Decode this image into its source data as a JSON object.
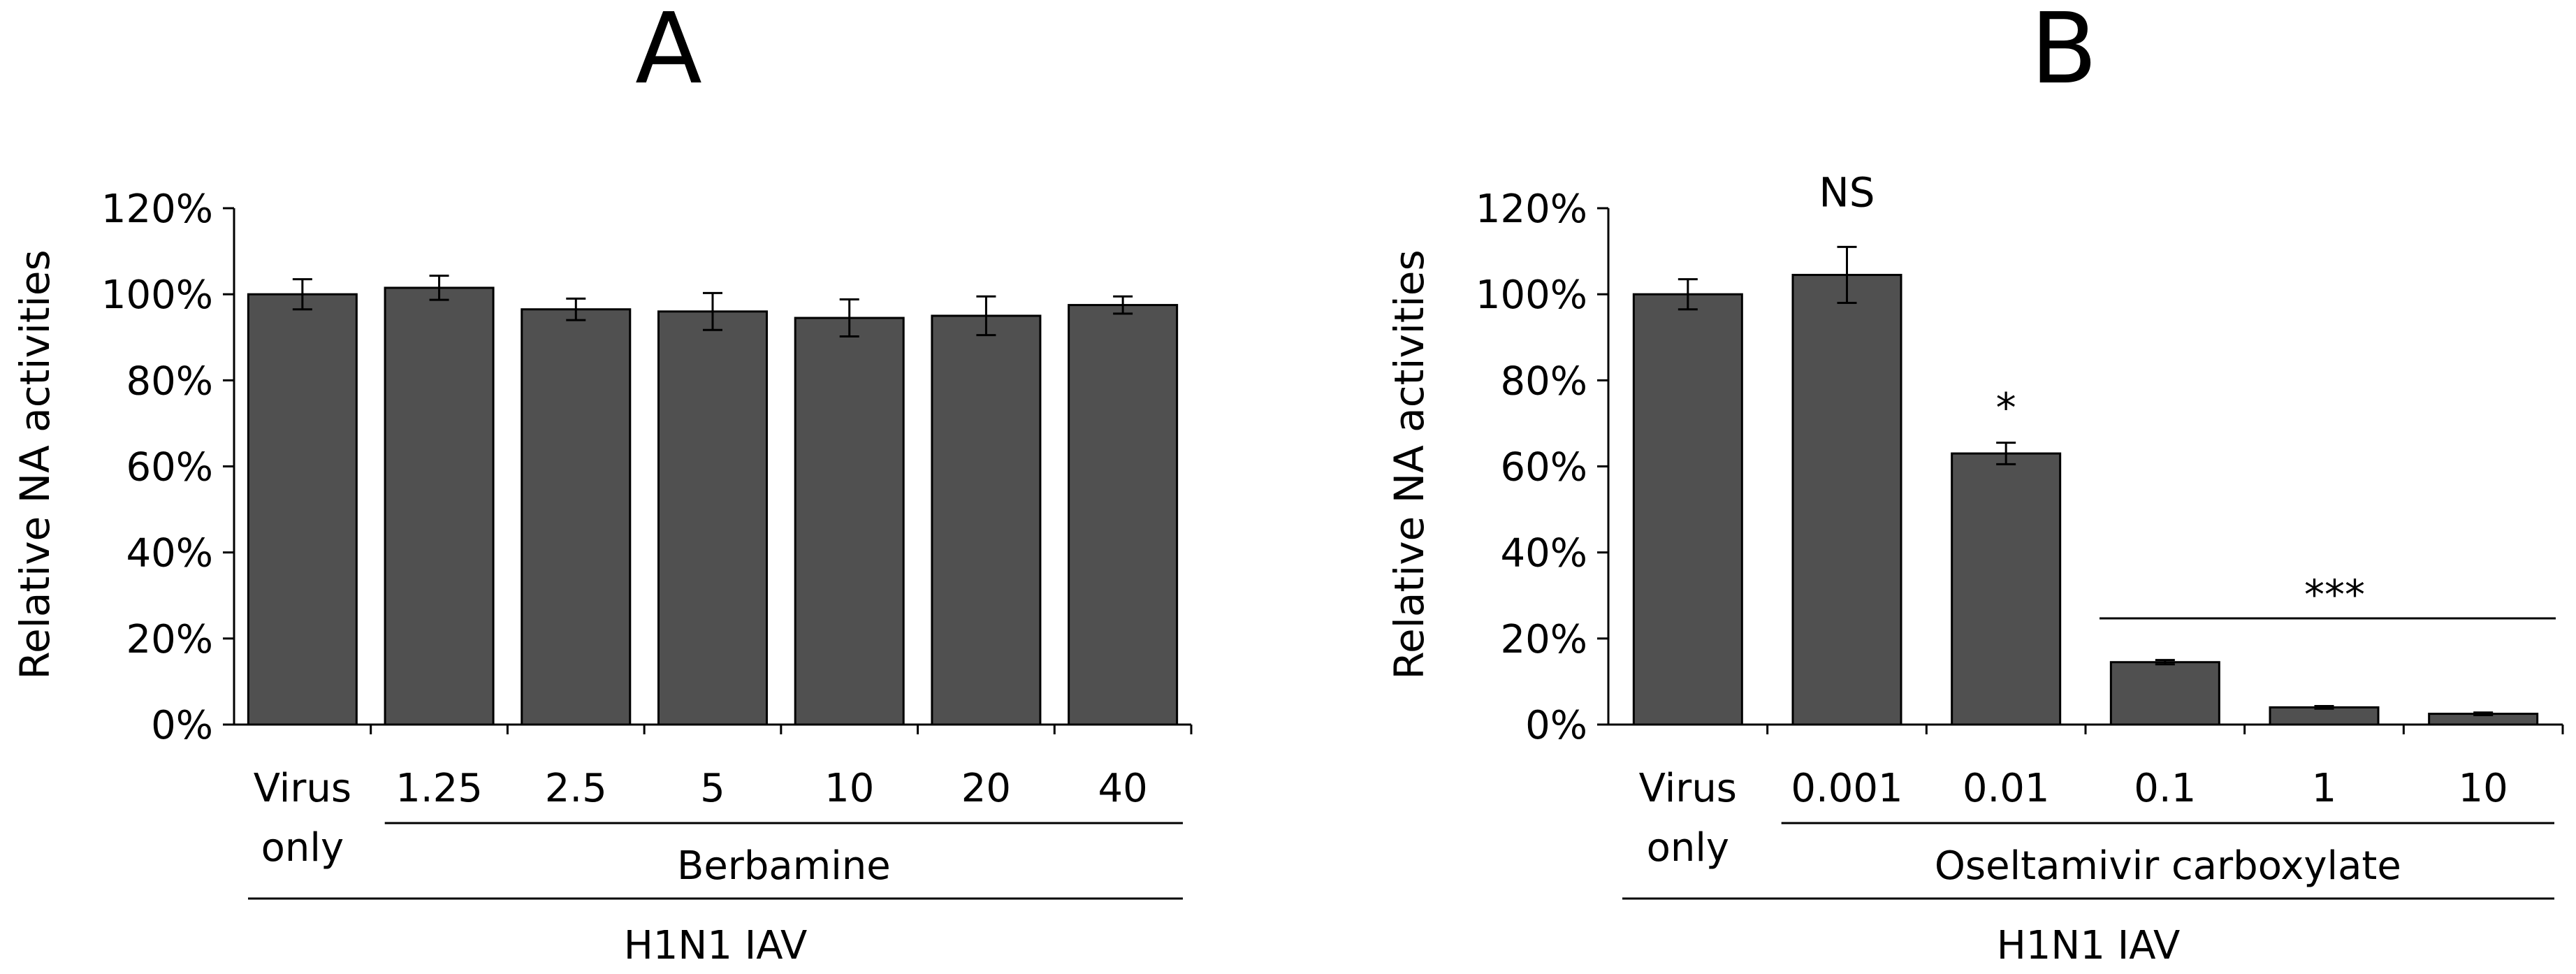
{
  "chart_data": [
    {
      "type": "bar",
      "panel_label": "A",
      "ylabel": "Relative NA activities",
      "ylim": [
        0,
        120
      ],
      "yticks": [
        "0%",
        "20%",
        "40%",
        "60%",
        "80%",
        "100%",
        "120%"
      ],
      "categories": [
        {
          "line1": "Virus",
          "line2": "only"
        },
        {
          "line1": "1.25",
          "line2": ""
        },
        {
          "line1": "2.5",
          "line2": ""
        },
        {
          "line1": "5",
          "line2": ""
        },
        {
          "line1": "10",
          "line2": ""
        },
        {
          "line1": "20",
          "line2": ""
        },
        {
          "line1": "40",
          "line2": ""
        }
      ],
      "values": [
        100,
        101.5,
        96.5,
        96,
        94.5,
        95,
        97.5
      ],
      "errors": [
        3.5,
        2.8,
        2.5,
        4.3,
        4.3,
        4.5,
        2.0
      ],
      "significance": [
        "",
        "",
        "",
        "",
        "",
        "",
        ""
      ],
      "treatment_label": "Berbamine",
      "treatment_range": [
        1,
        6
      ],
      "group_label": "H1N1 IAV",
      "grid": false,
      "bar_color": "#505050"
    },
    {
      "type": "bar",
      "panel_label": "B",
      "ylabel": "Relative NA activities",
      "ylim": [
        0,
        120
      ],
      "yticks": [
        "0%",
        "20%",
        "40%",
        "60%",
        "80%",
        "100%",
        "120%"
      ],
      "categories": [
        {
          "line1": "Virus",
          "line2": "only"
        },
        {
          "line1": "0.001",
          "line2": ""
        },
        {
          "line1": "0.01",
          "line2": ""
        },
        {
          "line1": "0.1",
          "line2": ""
        },
        {
          "line1": "1",
          "line2": ""
        },
        {
          "line1": "10",
          "line2": ""
        }
      ],
      "values": [
        100,
        104.5,
        63,
        14.5,
        4,
        2.5
      ],
      "errors": [
        3.5,
        6.5,
        2.5,
        0.5,
        0.3,
        0.3
      ],
      "significance": [
        "",
        "NS",
        "*",
        "",
        "",
        ""
      ],
      "bracket": {
        "label": "***",
        "from": 3,
        "to": 5
      },
      "treatment_label": "Oseltamivir carboxylate",
      "treatment_range": [
        1,
        5
      ],
      "group_label": "H1N1 IAV",
      "grid": false,
      "bar_color": "#505050"
    }
  ]
}
